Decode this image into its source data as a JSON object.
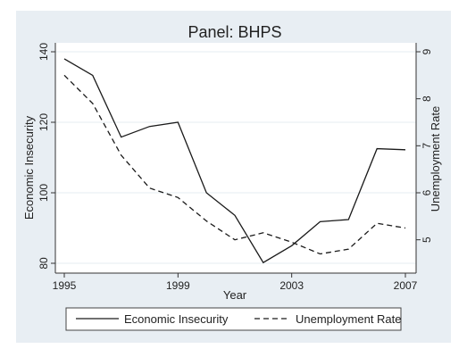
{
  "chart_data": {
    "type": "line",
    "title": "Panel: BHPS",
    "xlabel": "Year",
    "ylabel_left": "Economic Insecurity",
    "ylabel_right": "Unemployment Rate",
    "x": [
      1995,
      1996,
      1997,
      1998,
      1999,
      2000,
      2001,
      2002,
      2003,
      2004,
      2005,
      2006,
      2007
    ],
    "x_ticks": [
      "1995",
      "1999",
      "2003",
      "2007"
    ],
    "y_left_ticks": [
      "80",
      "100",
      "120",
      "140"
    ],
    "y_right_ticks": [
      "5",
      "6",
      "7",
      "8",
      "9"
    ],
    "xlim": [
      1995,
      2007
    ],
    "ylim_left": [
      80,
      140
    ],
    "ylim_right": [
      4.5,
      9
    ],
    "series": [
      {
        "name": "Economic Insecurity",
        "axis": "left",
        "style": "solid",
        "values": [
          138,
          133.3,
          115.8,
          118.8,
          120,
          100,
          93.6,
          80.2,
          85,
          91.8,
          92.4,
          112.5,
          112.2
        ]
      },
      {
        "name": "Unemployment Rate",
        "axis": "right",
        "style": "dashed",
        "values": [
          8.5,
          7.9,
          6.8,
          6.1,
          5.9,
          5.4,
          5.0,
          5.15,
          4.95,
          4.7,
          4.8,
          5.35,
          5.25
        ]
      }
    ],
    "grid": "horizontal",
    "legend_position": "bottom",
    "colors": {
      "background": "#e8eef3",
      "plot": "#ffffff",
      "line": "#1a1a1a",
      "grid": "#e6eef2",
      "title": "#1e3f66"
    }
  }
}
